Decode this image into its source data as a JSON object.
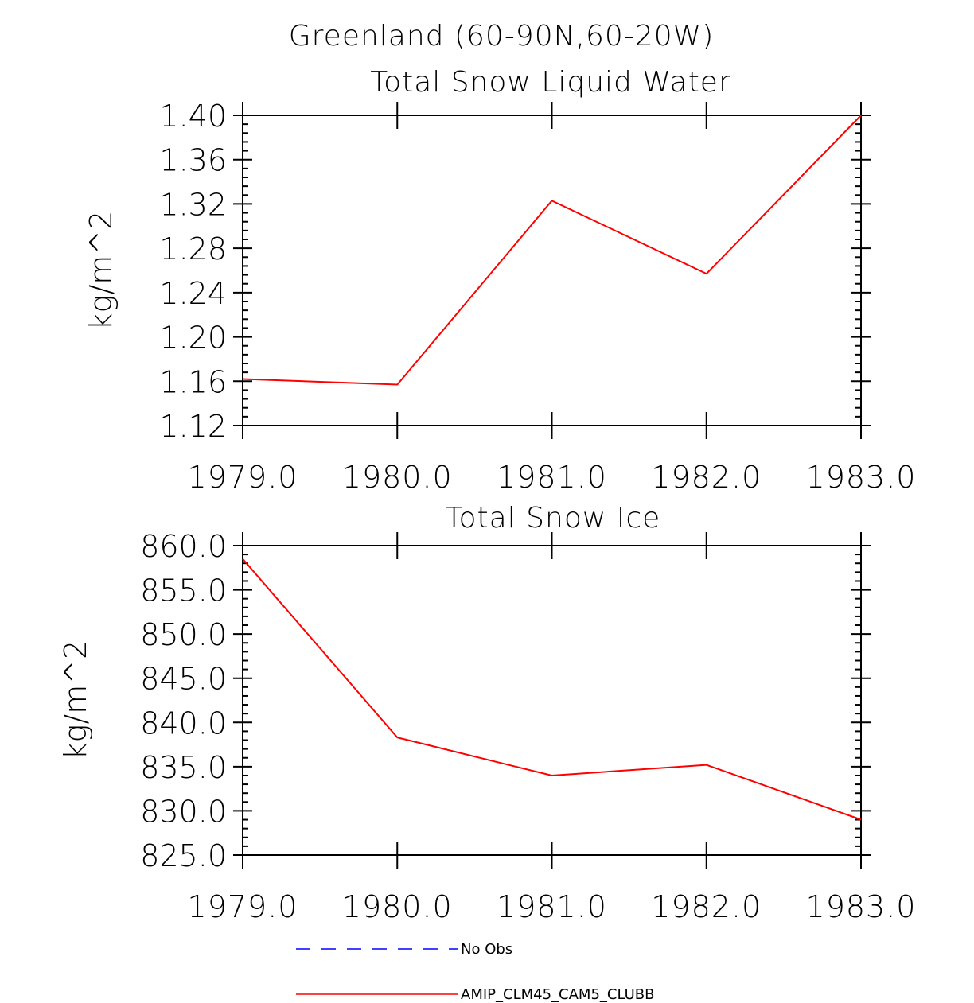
{
  "title": "Greenland (60-90N,60-20W)",
  "chart_data": [
    {
      "type": "line",
      "title": "Total Snow Liquid Water",
      "ylabel": "kg/m^2",
      "xlabel": "",
      "x": [
        1979,
        1980,
        1981,
        1982,
        1983
      ],
      "xticks": [
        "1979.0",
        "1980.0",
        "1981.0",
        "1982.0",
        "1983.0"
      ],
      "yticks": [
        "1.12",
        "1.16",
        "1.20",
        "1.24",
        "1.28",
        "1.32",
        "1.36",
        "1.40"
      ],
      "ylim": [
        1.12,
        1.4
      ],
      "xlim": [
        1979,
        1983
      ],
      "series": [
        {
          "name": "AMIP_CLM45_CAM5_CLUBB",
          "color": "#ff0000",
          "values": [
            1.162,
            1.157,
            1.323,
            1.257,
            1.4
          ]
        }
      ]
    },
    {
      "type": "line",
      "title": "Total Snow Ice",
      "ylabel": "kg/m^2",
      "xlabel": "",
      "x": [
        1979,
        1980,
        1981,
        1982,
        1983
      ],
      "xticks": [
        "1979.0",
        "1980.0",
        "1981.0",
        "1982.0",
        "1983.0"
      ],
      "yticks": [
        "825.0",
        "830.0",
        "835.0",
        "840.0",
        "845.0",
        "850.0",
        "855.0",
        "860.0"
      ],
      "ylim": [
        825,
        860
      ],
      "xlim": [
        1979,
        1983
      ],
      "series": [
        {
          "name": "AMIP_CLM45_CAM5_CLUBB",
          "color": "#ff0000",
          "values": [
            858.5,
            838.3,
            834.0,
            835.2,
            829.0
          ]
        }
      ]
    }
  ],
  "legend": [
    {
      "label": "No Obs",
      "color": "#0000ff",
      "style": "dashed"
    },
    {
      "label": "AMIP_CLM45_CAM5_CLUBB",
      "color": "#ff0000",
      "style": "solid"
    }
  ]
}
